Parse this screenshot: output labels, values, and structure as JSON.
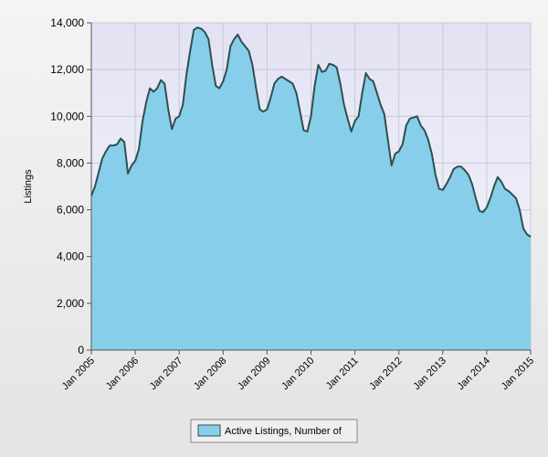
{
  "chart_data": {
    "type": "area",
    "y_label": "Listings",
    "categories": [
      "Jan 2005",
      null,
      null,
      null,
      null,
      null,
      null,
      null,
      null,
      null,
      null,
      null,
      "Jan 2006",
      null,
      null,
      null,
      null,
      null,
      null,
      null,
      null,
      null,
      null,
      null,
      "Jan 2007",
      null,
      null,
      null,
      null,
      null,
      null,
      null,
      null,
      null,
      null,
      null,
      "Jan 2008",
      null,
      null,
      null,
      null,
      null,
      null,
      null,
      null,
      null,
      null,
      null,
      "Jan 2009",
      null,
      null,
      null,
      null,
      null,
      null,
      null,
      null,
      null,
      null,
      null,
      "Jan 2010",
      null,
      null,
      null,
      null,
      null,
      null,
      null,
      null,
      null,
      null,
      null,
      "Jan 2011",
      null,
      null,
      null,
      null,
      null,
      null,
      null,
      null,
      null,
      null,
      null,
      "Jan 2012",
      null,
      null,
      null,
      null,
      null,
      null,
      null,
      null,
      null,
      null,
      null,
      "Jan 2013",
      null,
      null,
      null,
      null,
      null,
      null,
      null,
      null,
      null,
      null,
      null,
      "Jan 2014",
      null,
      null,
      null,
      null,
      null,
      null,
      null,
      null,
      null,
      null,
      null,
      "Jan 2015"
    ],
    "series": [
      {
        "name": "Active Listings, Number of",
        "color": "#87ceeb",
        "line_color": "#2f4f4f",
        "values": [
          6600,
          7000,
          7600,
          8200,
          8500,
          8750,
          8750,
          8800,
          9050,
          8900,
          7550,
          7900,
          8100,
          8600,
          9800,
          10600,
          11200,
          11050,
          11200,
          11550,
          11400,
          10300,
          9450,
          9900,
          10000,
          10500,
          11800,
          12800,
          13700,
          13800,
          13750,
          13600,
          13300,
          12200,
          11300,
          11200,
          11500,
          12000,
          13000,
          13300,
          13500,
          13200,
          13000,
          12800,
          12200,
          11200,
          10300,
          10200,
          10300,
          10800,
          11400,
          11600,
          11700,
          11600,
          11500,
          11400,
          11000,
          10200,
          9400,
          9350,
          10000,
          11300,
          12200,
          11900,
          11950,
          12250,
          12200,
          12100,
          11400,
          10500,
          9900,
          9350,
          9800,
          10000,
          11000,
          11850,
          11600,
          11500,
          11000,
          10500,
          10100,
          9000,
          7900,
          8400,
          8500,
          8800,
          9600,
          9900,
          9950,
          10000,
          9600,
          9400,
          9000,
          8400,
          7500,
          6900,
          6850,
          7100,
          7400,
          7750,
          7850,
          7850,
          7700,
          7500,
          7100,
          6500,
          5950,
          5900,
          6100,
          6500,
          7000,
          7400,
          7200,
          6900,
          6800,
          6650,
          6500,
          6000,
          5200,
          4950,
          4850
        ]
      }
    ],
    "ylim": [
      0,
      14000
    ],
    "yticks": [
      0,
      {
        "value": 2000,
        "label": "2,000"
      },
      {
        "value": 4000,
        "label": "4,000"
      },
      {
        "value": 6000,
        "label": "6,000"
      },
      {
        "value": 8000,
        "label": "8,000"
      },
      {
        "value": 10000,
        "label": "10,000"
      },
      {
        "value": 12000,
        "label": "12,000"
      },
      {
        "value": 14000,
        "label": "14,000"
      }
    ],
    "grid": true
  }
}
